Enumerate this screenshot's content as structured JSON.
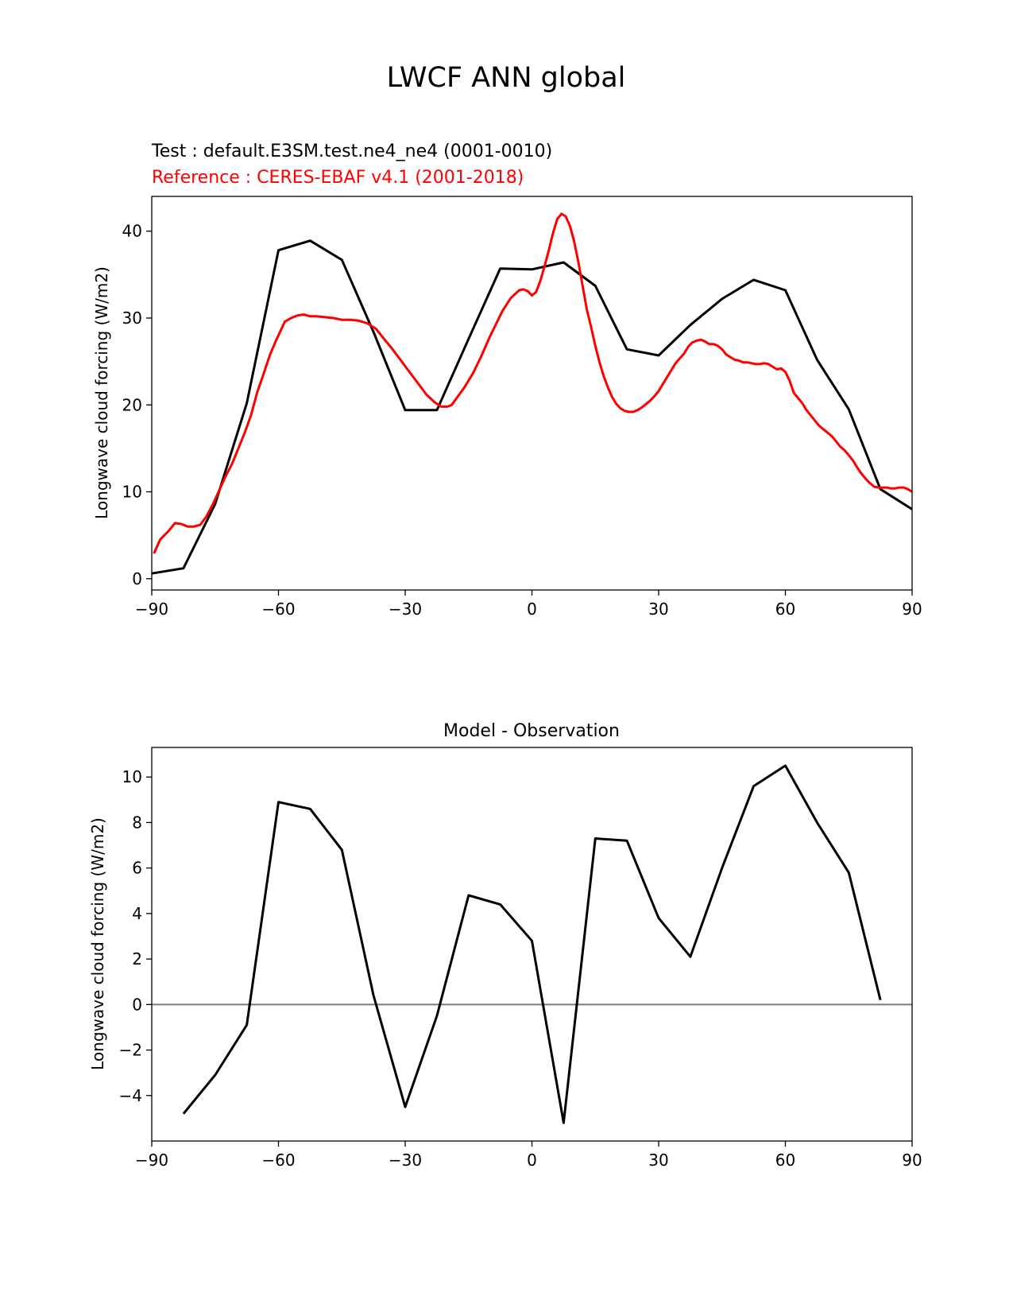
{
  "figure": {
    "title": "LWCF ANN global"
  },
  "chart_data": [
    {
      "type": "line",
      "title": "",
      "subtitle_test": "Test : default.E3SM.test.ne4_ne4 (0001-0010)",
      "subtitle_reference": "Reference : CERES-EBAF v4.1 (2001-2018)",
      "xlabel": "",
      "ylabel": "Longwave cloud forcing (W/m2)",
      "xlim": [
        -90,
        90
      ],
      "ylim": [
        -1.3,
        44
      ],
      "xticks": [
        -90,
        -60,
        -30,
        0,
        30,
        60,
        90
      ],
      "xtick_labels": [
        "−90",
        "−60",
        "−30",
        "0",
        "30",
        "60",
        "90"
      ],
      "yticks": [
        0,
        10,
        20,
        30,
        40
      ],
      "ytick_labels": [
        "0",
        "10",
        "20",
        "30",
        "40"
      ],
      "grid": false,
      "series": [
        {
          "color": "#000000",
          "x": [
            -90,
            -82.5,
            -75,
            -67.5,
            -60,
            -52.5,
            -45,
            -37.5,
            -30,
            -22.5,
            -15,
            -7.5,
            0,
            7.5,
            15,
            22.5,
            30,
            37.5,
            45,
            52.5,
            60,
            67.5,
            75,
            82.5,
            90
          ],
          "y": [
            0.6,
            1.2,
            8.6,
            20.2,
            37.8,
            38.9,
            36.7,
            28.4,
            19.4,
            19.4,
            27.6,
            35.7,
            35.6,
            36.4,
            33.7,
            26.4,
            25.7,
            29.2,
            32.2,
            34.4,
            33.2,
            25.2,
            19.5,
            10.3,
            8.0
          ]
        },
        {
          "color": "#ff0000",
          "x": [
            -89.5,
            -88,
            -86,
            -84.5,
            -83,
            -81.5,
            -80,
            -78.5,
            -77,
            -75.5,
            -74,
            -72.5,
            -71,
            -69.5,
            -68,
            -66.5,
            -65,
            -63.5,
            -62,
            -60.5,
            -60,
            -58.5,
            -57,
            -55.5,
            -54,
            -52.5,
            -51,
            -49,
            -47,
            -45,
            -43,
            -41,
            -39,
            -37,
            -35,
            -33,
            -31,
            -29,
            -27,
            -25,
            -23,
            -21.5,
            -20,
            -19,
            -17.5,
            -16,
            -14,
            -12,
            -10,
            -8.5,
            -7,
            -5,
            -3,
            -2,
            -1,
            0,
            1,
            2,
            3,
            4,
            5,
            6,
            7,
            8,
            9,
            10,
            11,
            12,
            13,
            14,
            15,
            16,
            17,
            18,
            19,
            20,
            21,
            22,
            23,
            24,
            25,
            26,
            27,
            28,
            29,
            30,
            32,
            34,
            36,
            37,
            38,
            39,
            40,
            41,
            42,
            43,
            44,
            45,
            46,
            47,
            48,
            49,
            50,
            51,
            52,
            53,
            54,
            55,
            56,
            57,
            58,
            59,
            60,
            61,
            62,
            63,
            64,
            65,
            66,
            67,
            68,
            69,
            70,
            71,
            72,
            73,
            74,
            75,
            76,
            77,
            78,
            79,
            80,
            81,
            82,
            83,
            84,
            85,
            86,
            87,
            88,
            89,
            90
          ],
          "y": [
            2.9,
            4.5,
            5.5,
            6.4,
            6.3,
            6.0,
            6.0,
            6.2,
            7.2,
            8.6,
            10.2,
            11.8,
            13.2,
            15.0,
            16.8,
            18.8,
            21.5,
            23.6,
            25.8,
            27.5,
            28.0,
            29.6,
            30.0,
            30.3,
            30.4,
            30.2,
            30.2,
            30.1,
            30.0,
            29.8,
            29.8,
            29.7,
            29.4,
            28.8,
            27.6,
            26.4,
            25.1,
            23.8,
            22.5,
            21.2,
            20.3,
            19.8,
            19.8,
            20.0,
            21.0,
            22.0,
            23.6,
            25.6,
            27.8,
            29.3,
            30.8,
            32.3,
            33.2,
            33.3,
            33.1,
            32.6,
            33.0,
            34.3,
            36.0,
            37.8,
            39.8,
            41.4,
            42.0,
            41.7,
            40.6,
            38.8,
            36.4,
            33.7,
            31.0,
            29.0,
            26.8,
            24.9,
            23.3,
            22.0,
            20.9,
            20.1,
            19.6,
            19.3,
            19.2,
            19.2,
            19.4,
            19.7,
            20.1,
            20.5,
            21.0,
            21.6,
            23.2,
            24.8,
            25.9,
            26.7,
            27.2,
            27.4,
            27.5,
            27.3,
            27.0,
            27.0,
            26.8,
            26.4,
            25.8,
            25.5,
            25.2,
            25.1,
            24.9,
            24.9,
            24.8,
            24.7,
            24.7,
            24.8,
            24.7,
            24.4,
            24.1,
            24.2,
            23.8,
            22.8,
            21.4,
            20.8,
            20.2,
            19.4,
            18.8,
            18.2,
            17.6,
            17.2,
            16.8,
            16.4,
            15.8,
            15.2,
            14.8,
            14.2,
            13.6,
            12.8,
            12.1,
            11.5,
            11.0,
            10.6,
            10.5,
            10.5,
            10.5,
            10.4,
            10.4,
            10.5,
            10.5,
            10.3,
            10.0
          ]
        }
      ]
    },
    {
      "type": "line",
      "title": "Model - Observation",
      "xlabel": "",
      "ylabel": "Longwave cloud forcing (W/m2)",
      "xlim": [
        -90,
        90
      ],
      "ylim": [
        -6.0,
        11.3
      ],
      "xticks": [
        -90,
        -60,
        -30,
        0,
        30,
        60,
        90
      ],
      "xtick_labels": [
        "−90",
        "−60",
        "−30",
        "0",
        "30",
        "60",
        "90"
      ],
      "yticks": [
        -4,
        -2,
        0,
        2,
        4,
        6,
        8,
        10
      ],
      "ytick_labels": [
        "−4",
        "−2",
        "0",
        "2",
        "4",
        "6",
        "8",
        "10"
      ],
      "grid": false,
      "zero_line_color": "#808080",
      "series": [
        {
          "color": "#000000",
          "x": [
            -82.5,
            -75,
            -67.5,
            -60,
            -52.5,
            -45,
            -37.5,
            -30,
            -22.5,
            -15,
            -7.5,
            0,
            7.5,
            15,
            22.5,
            30,
            37.5,
            45,
            52.5,
            60,
            67.5,
            75,
            82.5
          ],
          "y": [
            -4.8,
            -3.1,
            -0.9,
            8.9,
            8.6,
            6.8,
            0.4,
            -4.5,
            -0.5,
            4.8,
            4.4,
            2.8,
            -5.2,
            7.3,
            7.2,
            3.8,
            2.1,
            6.0,
            9.6,
            10.5,
            8.0,
            5.8,
            0.2
          ]
        }
      ]
    }
  ]
}
